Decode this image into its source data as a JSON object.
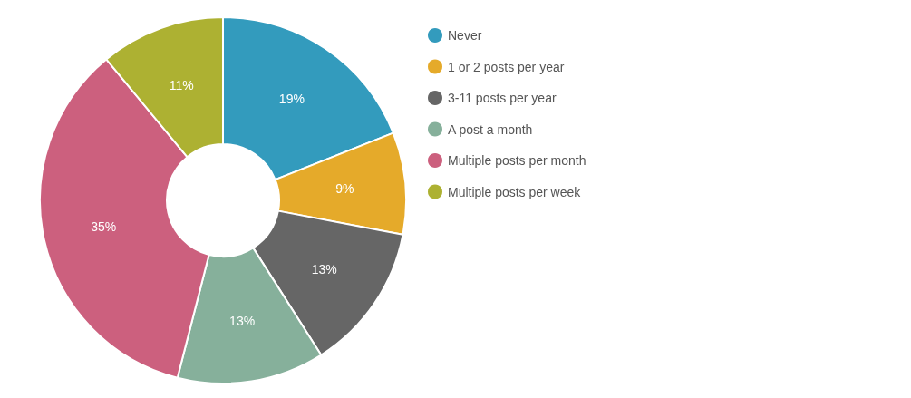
{
  "chart_data": {
    "type": "donut",
    "categories": [
      "Never",
      "1 or 2 posts per year",
      "3-11 posts per year",
      "A post a month",
      "Multiple posts per month",
      "Multiple posts per week"
    ],
    "values": [
      19,
      9,
      13,
      13,
      35,
      11
    ],
    "colors": [
      "#339bbd",
      "#e5aa2a",
      "#666666",
      "#86b09b",
      "#cc607e",
      "#adb132"
    ],
    "value_labels": [
      "19%",
      "9%",
      "13%",
      "13%",
      "35%",
      "11%"
    ],
    "legend": "top right"
  }
}
